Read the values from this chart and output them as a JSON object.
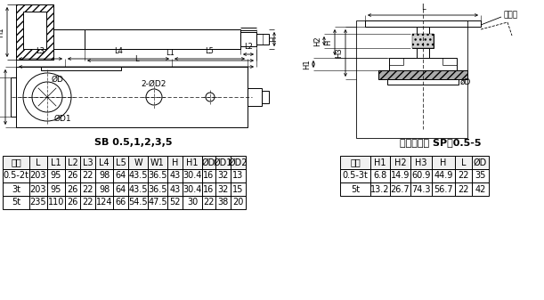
{
  "title_left": "SB 0.5,1,2,3,5",
  "title_right": "连接件组件 SP－0.5-5",
  "table_left_headers": [
    "容量",
    "L",
    "L1",
    "L2",
    "L3",
    "L4",
    "L5",
    "W",
    "W1",
    "H",
    "H1",
    "ØD",
    "ØD1",
    "ØD2"
  ],
  "table_left_rows": [
    [
      "0.5-2t",
      "203",
      "95",
      "26",
      "22",
      "98",
      "64",
      "43.5",
      "36.5",
      "43",
      "30.4",
      "16",
      "32",
      "13"
    ],
    [
      "3t",
      "203",
      "95",
      "26",
      "22",
      "98",
      "64",
      "43.5",
      "36.5",
      "43",
      "30.4",
      "16",
      "32",
      "15"
    ],
    [
      "5t",
      "235",
      "110",
      "26",
      "22",
      "124",
      "66",
      "54.5",
      "47.5",
      "52",
      "30",
      "22",
      "38",
      "20"
    ]
  ],
  "table_right_headers": [
    "容量",
    "H1",
    "H2",
    "H3",
    "H",
    "L",
    "ØD"
  ],
  "table_right_rows": [
    [
      "0.5-3t",
      "6.8",
      "14.9",
      "60.9",
      "44.9",
      "22",
      "35"
    ],
    [
      "5t",
      "13.2",
      "26.7",
      "74.3",
      "56.7",
      "22",
      "42"
    ]
  ],
  "bg_color": "#ffffff",
  "line_color": "#000000"
}
